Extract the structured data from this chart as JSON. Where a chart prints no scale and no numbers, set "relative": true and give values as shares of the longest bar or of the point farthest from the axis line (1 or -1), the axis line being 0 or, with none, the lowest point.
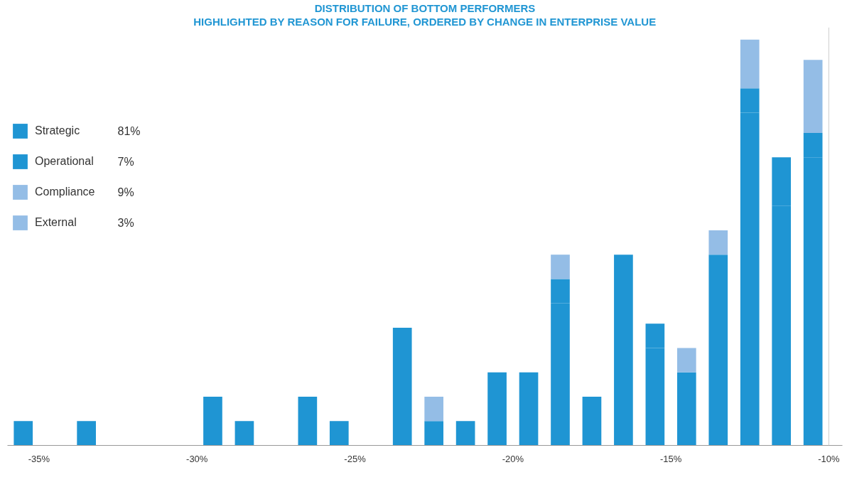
{
  "chart_data": {
    "type": "bar",
    "title": "DISTRIBUTION OF BOTTOM PERFORMERS",
    "subtitle": "HIGHLIGHTED BY REASON FOR FAILURE, ORDERED BY CHANGE IN ENTERPRISE VALUE",
    "relative": true,
    "stacked": true,
    "x": [
      -35.5,
      -33.5,
      -29.5,
      -28.5,
      -26.5,
      -25.5,
      -23.5,
      -22.5,
      -21.5,
      -20.5,
      -19.5,
      -18.5,
      -17.5,
      -16.5,
      -15.5,
      -14.5,
      -13.5,
      -12.5,
      -11.5,
      -10.5
    ],
    "xlim": [
      -36.0,
      -9.57
    ],
    "xticks": [
      {
        "value": -35,
        "label": "-35%"
      },
      {
        "value": -30,
        "label": "-30%"
      },
      {
        "value": -25,
        "label": "-25%"
      },
      {
        "value": -20,
        "label": "-20%"
      },
      {
        "value": -15,
        "label": "-15%"
      },
      {
        "value": -10,
        "label": "-10%"
      }
    ],
    "tick_labels": "x",
    "grid": false,
    "legend": "left",
    "ref_lines": [
      {
        "axis": "x",
        "value": -10,
        "color": "#cccccc"
      }
    ],
    "series": [
      {
        "name": "Strategic",
        "color": "#1f95d3",
        "values": [
          0.06,
          0.06,
          0.12,
          0.06,
          0.12,
          0.06,
          0.29,
          0.06,
          null,
          0.18,
          0.18,
          0.35,
          0.12,
          0.47,
          0.24,
          0.18,
          0.47,
          0.82,
          0.59,
          0.71
        ]
      },
      {
        "name": "Operational",
        "color": "#1f95d3",
        "values": [
          null,
          null,
          null,
          null,
          null,
          null,
          null,
          null,
          0.06,
          null,
          null,
          0.06,
          null,
          null,
          0.06,
          null,
          null,
          0.06,
          0.12,
          0.06
        ]
      },
      {
        "name": "Compliance",
        "color": "#94bde6",
        "values": [
          null,
          null,
          null,
          null,
          null,
          null,
          null,
          0.06,
          null,
          null,
          null,
          0.06,
          null,
          null,
          null,
          0.06,
          null,
          0.12,
          null,
          0.18
        ]
      },
      {
        "name": "External",
        "color": "#94bde6",
        "values": [
          null,
          null,
          null,
          null,
          null,
          null,
          null,
          null,
          null,
          null,
          null,
          null,
          null,
          null,
          null,
          null,
          0.06,
          null,
          null,
          null
        ]
      }
    ],
    "annotations": [
      "81%",
      "7%",
      "9%",
      "3%"
    ]
  }
}
